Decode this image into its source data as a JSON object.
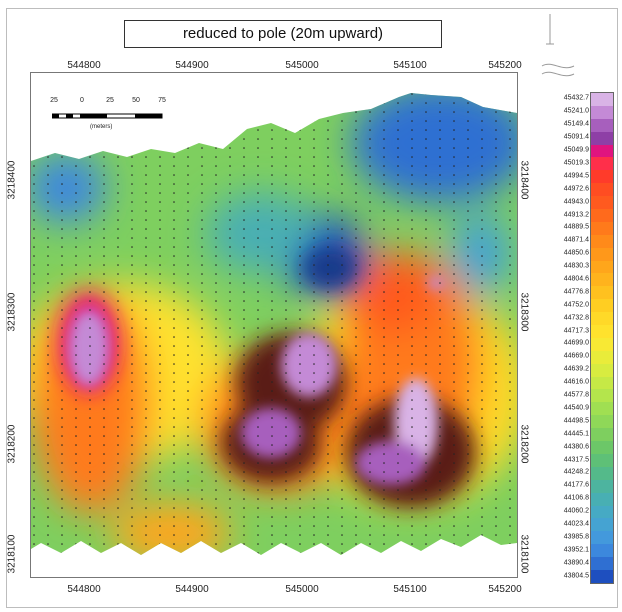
{
  "title": "reduced to pole (20m upward)",
  "x_ticks": [
    "544800",
    "544900",
    "545000",
    "545100",
    "545200"
  ],
  "y_ticks": [
    "3218400",
    "3218300",
    "3218200",
    "3218100"
  ],
  "scale_bar": {
    "labels": [
      "25",
      "0",
      "25",
      "50",
      "75"
    ],
    "unit": "(meters)"
  },
  "legend": {
    "values": [
      "45432.7",
      "45241.0",
      "45149.4",
      "45091.4",
      "45049.9",
      "45019.3",
      "44994.5",
      "44972.6",
      "44943.0",
      "44913.2",
      "44889.5",
      "44871.4",
      "44850.6",
      "44830.3",
      "44804.6",
      "44776.8",
      "44752.0",
      "44732.8",
      "44717.3",
      "44699.0",
      "44669.0",
      "44639.2",
      "44616.0",
      "44577.8",
      "44540.9",
      "44498.5",
      "44445.1",
      "44380.6",
      "44317.5",
      "44248.2",
      "44177.6",
      "44106.8",
      "44060.2",
      "44023.4",
      "43985.8",
      "43952.1",
      "43890.4",
      "43804.5"
    ],
    "colors": [
      "#d9b3e6",
      "#c48ad6",
      "#a75fbd",
      "#8e3fa6",
      "#e0147f",
      "#ff2f4a",
      "#ff3b2a",
      "#ff4d22",
      "#ff5a1f",
      "#ff6a1c",
      "#ff7a1b",
      "#ff8a1a",
      "#ff981a",
      "#ffa61b",
      "#ffb31d",
      "#ffc11f",
      "#ffce22",
      "#ffd928",
      "#ffe22d",
      "#f8e934",
      "#e9ec3a",
      "#d8ec40",
      "#c6e946",
      "#b4e54c",
      "#a0df52",
      "#8fd858",
      "#7ecf5f",
      "#6cc768",
      "#5ec077",
      "#54ba8a",
      "#4db49f",
      "#48afb3",
      "#46aac4",
      "#45a3d2",
      "#4399dc",
      "#3c88dd",
      "#2f6fd2",
      "#1e4fbf"
    ]
  },
  "colors": {
    "map_background": "#7ecf5f",
    "frame": "#bdbdbd"
  }
}
